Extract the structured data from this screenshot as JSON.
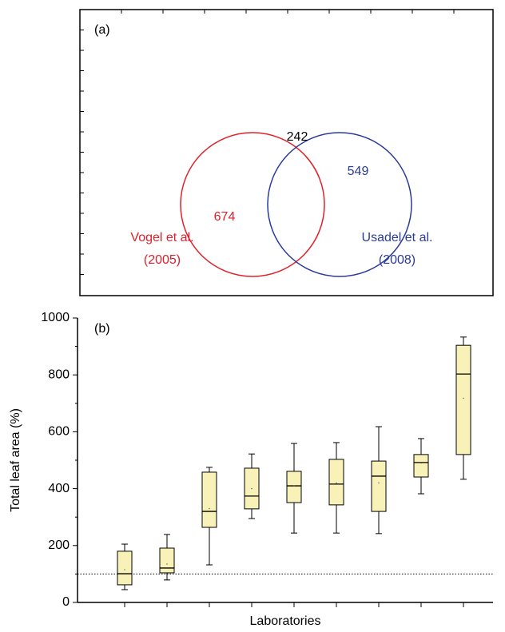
{
  "chart_data": [
    {
      "type": "venn",
      "panel_label": "(a)",
      "sets": [
        {
          "label_lines": [
            "Vogel et al.",
            "(2005)"
          ],
          "color": "#e0202a",
          "only": 674
        },
        {
          "label_lines": [
            "Usadel et al.",
            "(2008)"
          ],
          "color": "#2a3a9a",
          "only": 549
        }
      ],
      "overlap": 242,
      "overlap_color": "#000000"
    },
    {
      "type": "box",
      "panel_label": "(b)",
      "xlabel": "Laboratories",
      "ylabel": "Total leaf area (%)",
      "categories": [
        null,
        null,
        null,
        null,
        null,
        null,
        null,
        null,
        null
      ],
      "ylim": [
        0,
        1000
      ],
      "yticks": [
        0,
        200,
        400,
        600,
        800,
        1000
      ],
      "reference_line": 100,
      "box_color": "#f8f2b8",
      "boxes": [
        {
          "whisker_low": 45,
          "q1": 62,
          "median": 101,
          "q3": 180,
          "whisker_high": 205,
          "mean": 115
        },
        {
          "whisker_low": 79,
          "q1": 104,
          "median": 121,
          "q3": 191,
          "whisker_high": 239,
          "mean": 135
        },
        {
          "whisker_low": 132,
          "q1": 264,
          "median": 320,
          "q3": 458,
          "whisker_high": 475,
          "mean": 330
        },
        {
          "whisker_low": 295,
          "q1": 329,
          "median": 374,
          "q3": 472,
          "whisker_high": 522,
          "mean": 400
        },
        {
          "whisker_low": 244,
          "q1": 351,
          "median": 410,
          "q3": 461,
          "whisker_high": 559,
          "mean": 410
        },
        {
          "whisker_low": 244,
          "q1": 343,
          "median": 416,
          "q3": 503,
          "whisker_high": 562,
          "mean": 420
        },
        {
          "whisker_low": 242,
          "q1": 320,
          "median": 444,
          "q3": 497,
          "whisker_high": 618,
          "mean": 420
        },
        {
          "whisker_low": 382,
          "q1": 441,
          "median": 492,
          "q3": 520,
          "whisker_high": 576,
          "mean": 490
        },
        {
          "whisker_low": 433,
          "q1": 520,
          "median": 803,
          "q3": 904,
          "whisker_high": 933,
          "mean": 718
        }
      ]
    }
  ]
}
